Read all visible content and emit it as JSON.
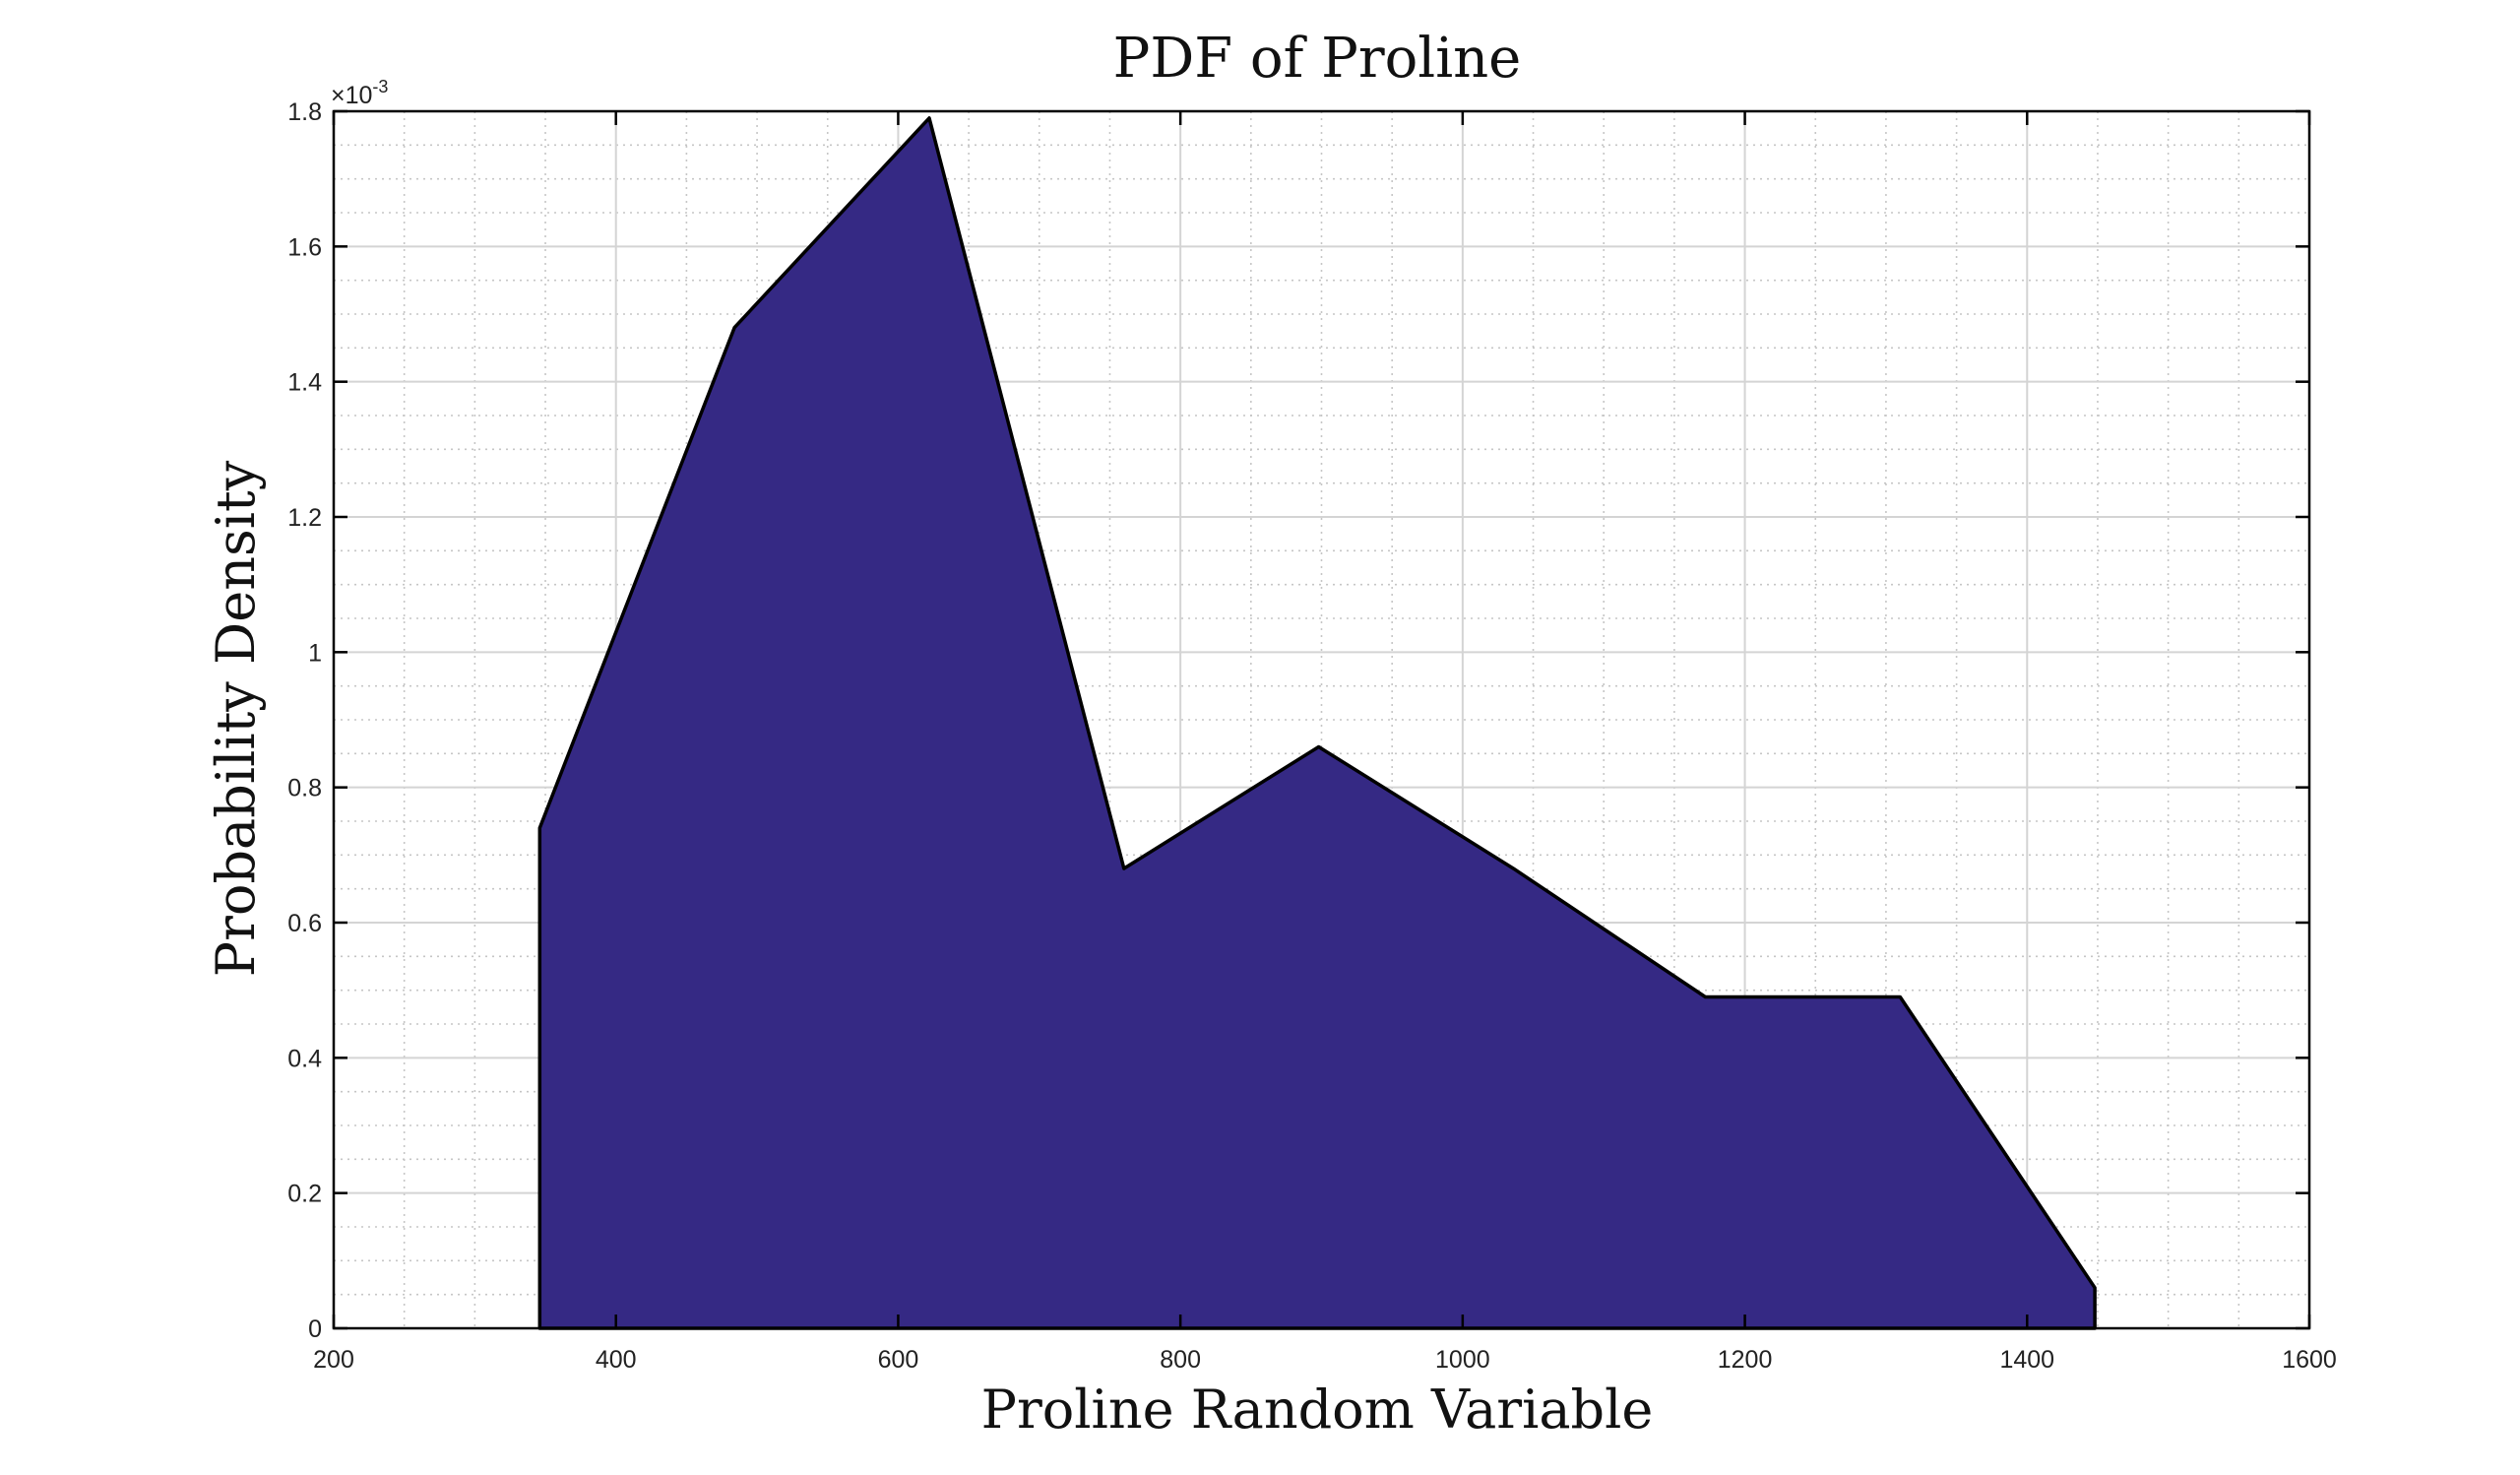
{
  "chart_data": {
    "type": "area",
    "title": "PDF of Proline",
    "xlabel": "Proline Random Variable",
    "ylabel": "Probability Density",
    "y_exponent_label": "×10",
    "y_exponent_power": "-3",
    "xlim": [
      200,
      1600
    ],
    "ylim": [
      0,
      1.8
    ],
    "x_ticks": [
      200,
      400,
      600,
      800,
      1000,
      1200,
      1400,
      1600
    ],
    "x_tick_labels": [
      "200",
      "400",
      "600",
      "800",
      "1000",
      "1200",
      "1400",
      "1600"
    ],
    "y_ticks": [
      0,
      0.2,
      0.4,
      0.6,
      0.8,
      1,
      1.2,
      1.4,
      1.6,
      1.8
    ],
    "y_tick_labels": [
      "0",
      "0.2",
      "0.4",
      "0.6",
      "0.8",
      "1",
      "1.2",
      "1.4",
      "1.6",
      "1.8"
    ],
    "grid": true,
    "minor_grid": true,
    "x_minor_step": 50,
    "y_minor_step": 0.05,
    "series": [
      {
        "x": [
          346,
          346,
          484,
          622,
          760,
          898,
          1036,
          1172,
          1310,
          1448,
          1448
        ],
        "y": [
          0,
          0.74,
          1.48,
          1.79,
          0.68,
          0.86,
          0.68,
          0.49,
          0.49,
          0.06,
          0
        ]
      }
    ],
    "colors": {
      "fill": "#352984",
      "stroke": "#000000",
      "axes": "#000000",
      "major_grid": "#d4d4d4",
      "minor_grid": "#c6c6c6"
    }
  }
}
